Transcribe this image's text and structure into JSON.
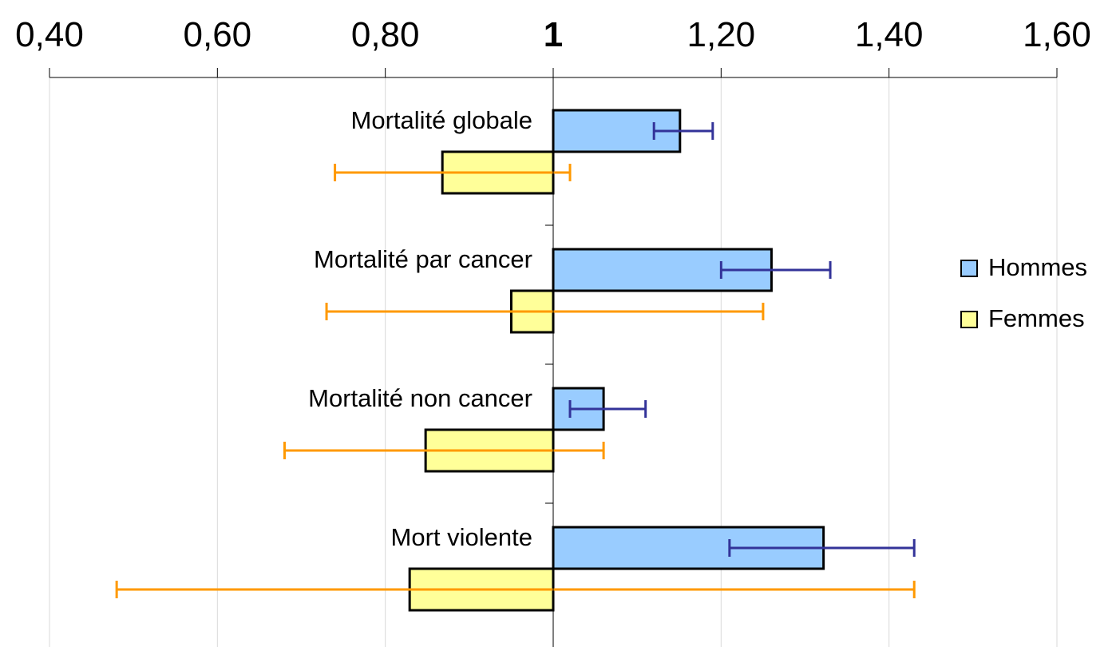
{
  "chart_data": {
    "type": "bar",
    "orientation": "horizontal",
    "baseline": 1,
    "xlim": [
      0.4,
      1.6
    ],
    "x_ticks": [
      {
        "value": 0.4,
        "label": "0,40",
        "bold": false
      },
      {
        "value": 0.6,
        "label": "0,60",
        "bold": false
      },
      {
        "value": 0.8,
        "label": "0,80",
        "bold": false
      },
      {
        "value": 1.0,
        "label": "1",
        "bold": true
      },
      {
        "value": 1.2,
        "label": "1,20",
        "bold": false
      },
      {
        "value": 1.4,
        "label": "1,40",
        "bold": false
      },
      {
        "value": 1.6,
        "label": "1,60",
        "bold": false
      }
    ],
    "x_axis_position": "top",
    "grid": true,
    "legend_position": "right",
    "categories": [
      "Mortalité globale",
      "Mortalité par cancer",
      "Mortalité non cancer",
      "Mort violente"
    ],
    "series": [
      {
        "name": "Hommes",
        "color": "#99ccff",
        "error_color": "#333399",
        "values": [
          1.151,
          1.26,
          1.06,
          1.322
        ],
        "ci_low": [
          1.12,
          1.2,
          1.02,
          1.21
        ],
        "ci_high": [
          1.19,
          1.33,
          1.11,
          1.43
        ]
      },
      {
        "name": "Femmes",
        "color": "#ffff99",
        "error_color": "#ff9900",
        "values": [
          0.868,
          0.95,
          0.848,
          0.829
        ],
        "ci_low": [
          0.74,
          0.73,
          0.68,
          0.48
        ],
        "ci_high": [
          1.02,
          1.25,
          1.06,
          1.43
        ]
      }
    ]
  }
}
